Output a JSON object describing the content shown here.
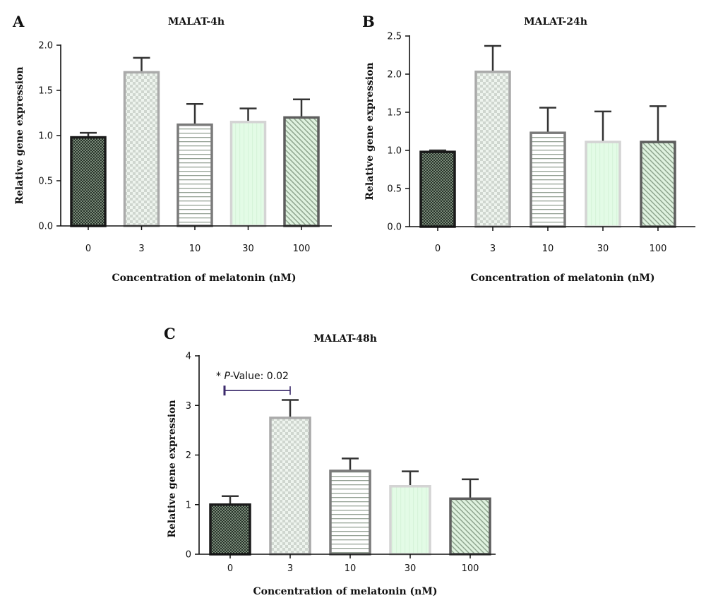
{
  "chart_data": [
    {
      "panel": "A",
      "type": "bar",
      "title": "MALAT-4h",
      "xlabel": "Concentration of melatonin (nM)",
      "ylabel": "Relative gene expression",
      "categories": [
        "0",
        "3",
        "10",
        "30",
        "100"
      ],
      "values": [
        0.98,
        1.7,
        1.12,
        1.15,
        1.2
      ],
      "errors": [
        0.05,
        0.16,
        0.23,
        0.15,
        0.2
      ],
      "ylim": [
        0,
        2.0
      ],
      "yticks": [
        "0.0",
        "0.5",
        "1.0",
        "1.5",
        "2.0"
      ],
      "grid": false,
      "legend": "none"
    },
    {
      "panel": "B",
      "type": "bar",
      "title": "MALAT-24h",
      "xlabel": "Concentration of melatonin (nM)",
      "ylabel": "Relative gene expression",
      "categories": [
        "0",
        "3",
        "10",
        "30",
        "100"
      ],
      "values": [
        0.98,
        2.03,
        1.23,
        1.11,
        1.11
      ],
      "errors": [
        0.02,
        0.34,
        0.33,
        0.4,
        0.47
      ],
      "ylim": [
        0,
        2.5
      ],
      "yticks": [
        "0.0",
        "0.5",
        "1.0",
        "1.5",
        "2.0",
        "2.5"
      ],
      "grid": false,
      "legend": "none"
    },
    {
      "panel": "C",
      "type": "bar",
      "title": "MALAT-48h",
      "xlabel": "Concentration of melatonin (nM)",
      "ylabel": "Relative gene expression",
      "categories": [
        "0",
        "3",
        "10",
        "30",
        "100"
      ],
      "values": [
        1.0,
        2.75,
        1.68,
        1.37,
        1.12
      ],
      "errors": [
        0.17,
        0.36,
        0.25,
        0.3,
        0.39
      ],
      "ylim": [
        0,
        4
      ],
      "yticks": [
        "0",
        "1",
        "2",
        "3",
        "4"
      ],
      "grid": false,
      "legend": "none",
      "annotation": {
        "prefix": "* ",
        "italic": "P",
        "text": "-Value: 0.02",
        "from_category": "0",
        "to_category": "3",
        "y": 3.3,
        "color": "#3b2a6b"
      }
    }
  ],
  "colors": {
    "axis": "#111111",
    "error_bar": "#333333",
    "bar_fills": [
      "#7a8a78",
      "#eef4ee",
      "#ffffff",
      "#e3fbe6",
      "#dff2df"
    ],
    "bar_patterns": [
      "#27332a",
      "#cfd6cf",
      "#95a295",
      "#d7f4da",
      "#8fa58f"
    ],
    "bar_strokes": [
      "#1a1a1a",
      "#aaaaaa",
      "#7a7a7a",
      "#d4d4d4",
      "#5e5e5e"
    ]
  }
}
